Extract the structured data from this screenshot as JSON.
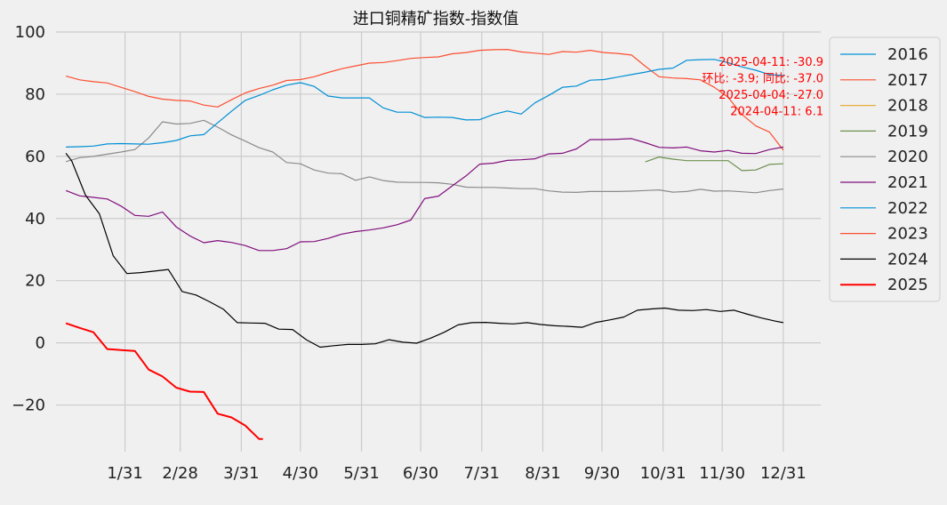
{
  "chart_data": {
    "type": "line",
    "title": "进口铜精矿指数-指数值",
    "xlabel": "",
    "ylabel": "",
    "ylim": [
      -35,
      100
    ],
    "y_ticks": [
      -20,
      0,
      20,
      40,
      60,
      80,
      100
    ],
    "x_tick_labels": [
      "1/31",
      "2/28",
      "3/31",
      "4/30",
      "5/31",
      "6/30",
      "7/31",
      "8/31",
      "9/30",
      "10/31",
      "11/30",
      "12/31"
    ],
    "x_tick_days": [
      31,
      59,
      90,
      120,
      151,
      181,
      212,
      243,
      273,
      304,
      334,
      365
    ],
    "x_range_days": [
      -4,
      384
    ],
    "grid": true,
    "legend_position": "outside-right",
    "series": [
      {
        "name": "2016",
        "color": "#008fd5",
        "width": 1.2,
        "x": [],
        "y": []
      },
      {
        "name": "2017",
        "color": "#fc4f30",
        "width": 1.2,
        "x": [
          1,
          8,
          15,
          22,
          29,
          36,
          43,
          50,
          57,
          64,
          71,
          78,
          85,
          92,
          99,
          106,
          113,
          120,
          127,
          134,
          141,
          148,
          155,
          162,
          169,
          176,
          183,
          190,
          197,
          204,
          211,
          218,
          225,
          232,
          239,
          246,
          253,
          260,
          267,
          274,
          281,
          288,
          295,
          302,
          309,
          316,
          323,
          330,
          337,
          344,
          351,
          358,
          365
        ],
        "y": [
          85.8,
          84.6,
          84.0,
          83.6,
          82.2,
          80.8,
          79.3,
          78.4,
          78.0,
          77.8,
          76.5,
          75.9,
          78.2,
          80.4,
          81.8,
          82.9,
          84.4,
          84.7,
          85.6,
          87.0,
          88.2,
          89.1,
          90.0,
          90.2,
          90.8,
          91.5,
          91.8,
          92.0,
          93.0,
          93.4,
          94.1,
          94.3,
          94.4,
          93.6,
          93.2,
          92.8,
          93.7,
          93.5,
          94.1,
          93.4,
          93.1,
          92.6,
          89.0,
          85.6,
          85.2,
          85.0,
          84.6,
          82.2,
          79.0,
          73.5,
          69.8,
          67.8,
          62.0
        ]
      },
      {
        "name": "2018",
        "color": "#e5ae38",
        "width": 1.2,
        "x": [],
        "y": []
      },
      {
        "name": "2019",
        "color": "#6d904f",
        "width": 1.2,
        "x": [
          295,
          302,
          309,
          316,
          323,
          330,
          337,
          344,
          351,
          358,
          365
        ],
        "y": [
          58.2,
          59.8,
          59.1,
          58.6,
          58.6,
          58.6,
          58.6,
          55.4,
          55.6,
          57.4,
          57.6
        ]
      },
      {
        "name": "2020",
        "color": "#8b8b8b",
        "width": 1.2,
        "x": [
          1,
          8,
          15,
          22,
          29,
          36,
          43,
          50,
          57,
          64,
          71,
          78,
          85,
          92,
          99,
          106,
          113,
          120,
          127,
          134,
          141,
          148,
          155,
          162,
          169,
          176,
          183,
          190,
          197,
          204,
          211,
          218,
          225,
          232,
          239,
          246,
          253,
          260,
          267,
          274,
          281,
          288,
          295,
          302,
          309,
          316,
          323,
          330,
          337,
          344,
          351,
          358,
          365
        ],
        "y": [
          58.3,
          59.6,
          60.0,
          60.7,
          61.4,
          62.2,
          65.9,
          71.1,
          70.4,
          70.6,
          71.6,
          69.4,
          66.9,
          64.9,
          62.8,
          61.4,
          58.0,
          57.6,
          55.6,
          54.6,
          54.4,
          52.3,
          53.4,
          52.2,
          51.7,
          51.6,
          51.6,
          51.5,
          51.0,
          50.1,
          50.0,
          50.0,
          49.8,
          49.6,
          49.6,
          48.9,
          48.5,
          48.4,
          48.7,
          48.7,
          48.7,
          48.8,
          49.0,
          49.2,
          48.5,
          48.7,
          49.4,
          48.8,
          48.9,
          48.6,
          48.3,
          49.0,
          49.5
        ]
      },
      {
        "name": "2021",
        "color": "#810f7c",
        "width": 1.2,
        "x": [
          1,
          8,
          15,
          22,
          29,
          36,
          43,
          50,
          57,
          64,
          71,
          78,
          85,
          92,
          99,
          106,
          113,
          120,
          127,
          134,
          141,
          148,
          155,
          162,
          169,
          176,
          183,
          190,
          197,
          204,
          211,
          218,
          225,
          232,
          239,
          246,
          253,
          260,
          267,
          274,
          281,
          288,
          295,
          302,
          309,
          316,
          323,
          330,
          337,
          344,
          351,
          358,
          365
        ],
        "y": [
          49.0,
          47.3,
          46.8,
          46.3,
          44.0,
          41.0,
          40.7,
          42.1,
          37.3,
          34.4,
          32.2,
          32.9,
          32.3,
          31.3,
          29.7,
          29.7,
          30.3,
          32.5,
          32.6,
          33.6,
          35.0,
          35.8,
          36.3,
          37.0,
          38.0,
          39.5,
          46.4,
          47.2,
          50.5,
          53.7,
          57.5,
          57.8,
          58.7,
          58.9,
          59.2,
          60.8,
          61.0,
          62.4,
          65.4,
          65.4,
          65.5,
          65.7,
          64.4,
          62.9,
          62.7,
          63.0,
          61.8,
          61.4,
          61.9,
          61.0,
          60.9,
          62.2,
          63.0
        ]
      },
      {
        "name": "2022",
        "color": "#008fd5",
        "width": 1.2,
        "x": [
          1,
          8,
          15,
          22,
          29,
          36,
          43,
          50,
          57,
          64,
          71,
          78,
          85,
          92,
          99,
          106,
          113,
          120,
          127,
          134,
          141,
          148,
          155,
          162,
          169,
          176,
          183,
          190,
          197,
          204,
          211,
          218,
          225,
          232,
          239,
          246,
          253,
          260,
          267,
          274,
          281,
          288,
          295,
          302,
          309,
          316,
          323,
          330,
          337,
          344,
          351,
          358,
          365
        ],
        "y": [
          63.0,
          63.1,
          63.3,
          64.0,
          64.1,
          64.0,
          63.9,
          64.4,
          65.1,
          66.6,
          67.0,
          70.8,
          74.5,
          78.0,
          79.6,
          81.4,
          82.9,
          83.7,
          82.5,
          79.4,
          78.8,
          78.8,
          78.8,
          75.6,
          74.2,
          74.2,
          72.5,
          72.6,
          72.5,
          71.7,
          71.8,
          73.5,
          74.6,
          73.6,
          77.2,
          79.6,
          82.2,
          82.6,
          84.5,
          84.7,
          85.5,
          86.3,
          87.1,
          88.0,
          88.4,
          90.9,
          91.1,
          91.2,
          90.1,
          88.8,
          87.7,
          86.3,
          86.0
        ]
      },
      {
        "name": "2023",
        "color": "#fc4f30",
        "width": 1.2,
        "x": [],
        "y": []
      },
      {
        "name": "2024",
        "color": "#000000",
        "width": 1.2,
        "x": [
          1,
          4,
          11,
          18,
          25,
          32,
          39,
          46,
          53,
          60,
          67,
          74,
          81,
          88,
          95,
          102,
          109,
          116,
          123,
          130,
          137,
          144,
          151,
          158,
          165,
          172,
          179,
          186,
          193,
          200,
          207,
          214,
          221,
          228,
          235,
          242,
          249,
          256,
          263,
          270,
          277,
          284,
          291,
          298,
          305,
          312,
          319,
          326,
          333,
          340,
          347,
          354,
          361,
          365
        ],
        "y": [
          61.0,
          58.5,
          47.5,
          41.5,
          28.0,
          22.3,
          22.6,
          23.1,
          23.6,
          16.5,
          15.4,
          13.2,
          10.8,
          6.5,
          6.4,
          6.3,
          4.4,
          4.3,
          1.0,
          -1.4,
          -0.9,
          -0.5,
          -0.5,
          -0.3,
          1.0,
          0.2,
          -0.1,
          1.5,
          3.4,
          5.8,
          6.5,
          6.6,
          6.3,
          6.1,
          6.5,
          5.9,
          5.5,
          5.3,
          5.0,
          6.6,
          7.4,
          8.3,
          10.5,
          10.9,
          11.2,
          10.5,
          10.4,
          10.7,
          10.1,
          10.5,
          9.2,
          8.0,
          7.0,
          6.5
        ]
      },
      {
        "name": "2025",
        "color": "#ff0000",
        "width": 2.0,
        "x": [
          1,
          8,
          15,
          22,
          29,
          36,
          43,
          50,
          57,
          64,
          71,
          78,
          85,
          92,
          99,
          101
        ],
        "y": [
          6.3,
          4.8,
          3.4,
          -2.0,
          -2.3,
          -2.6,
          -8.6,
          -10.8,
          -14.4,
          -15.7,
          -15.8,
          -22.8,
          -24.0,
          -26.6,
          -30.9,
          -30.9
        ]
      }
    ],
    "annotations": [
      {
        "text": "2025-04-11: -30.9",
        "color": "#ff0000"
      },
      {
        "text": "环比: -3.9; 同比: -37.0",
        "color": "#ff0000"
      },
      {
        "text": "2025-04-04: -27.0",
        "color": "#ff0000"
      },
      {
        "text": "2024-04-11: 6.1",
        "color": "#ff0000"
      }
    ]
  }
}
